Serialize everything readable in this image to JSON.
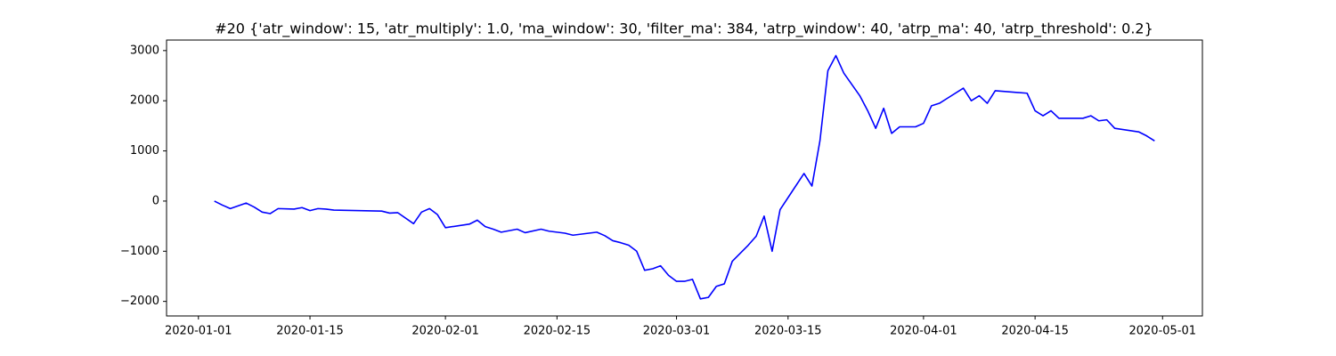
{
  "chart_data": {
    "type": "line",
    "title": "#20 {'atr_window': 15, 'atr_multiply': 1.0, 'ma_window': 30, 'filter_ma': 384, 'atrp_window': 40, 'atrp_ma': 40, 'atrp_threshold': 0.2}",
    "x": [
      "2020-01-03",
      "2020-01-04",
      "2020-01-05",
      "2020-01-07",
      "2020-01-08",
      "2020-01-09",
      "2020-01-10",
      "2020-01-11",
      "2020-01-13",
      "2020-01-14",
      "2020-01-15",
      "2020-01-16",
      "2020-01-17",
      "2020-01-18",
      "2020-01-24",
      "2020-01-25",
      "2020-01-26",
      "2020-01-28",
      "2020-01-29",
      "2020-01-30",
      "2020-01-31",
      "2020-02-01",
      "2020-02-04",
      "2020-02-05",
      "2020-02-06",
      "2020-02-07",
      "2020-02-08",
      "2020-02-10",
      "2020-02-11",
      "2020-02-13",
      "2020-02-14",
      "2020-02-16",
      "2020-02-17",
      "2020-02-20",
      "2020-02-21",
      "2020-02-22",
      "2020-02-23",
      "2020-02-24",
      "2020-02-25",
      "2020-02-26",
      "2020-02-27",
      "2020-02-28",
      "2020-02-29",
      "2020-03-01",
      "2020-03-02",
      "2020-03-03",
      "2020-03-04",
      "2020-03-05",
      "2020-03-06",
      "2020-03-07",
      "2020-03-08",
      "2020-03-10",
      "2020-03-11",
      "2020-03-12",
      "2020-03-13",
      "2020-03-14",
      "2020-03-17",
      "2020-03-18",
      "2020-03-19",
      "2020-03-20",
      "2020-03-21",
      "2020-03-22",
      "2020-03-24",
      "2020-03-25",
      "2020-03-26",
      "2020-03-27",
      "2020-03-28",
      "2020-03-29",
      "2020-03-31",
      "2020-04-01",
      "2020-04-02",
      "2020-04-03",
      "2020-04-04",
      "2020-04-06",
      "2020-04-07",
      "2020-04-08",
      "2020-04-09",
      "2020-04-10",
      "2020-04-14",
      "2020-04-15",
      "2020-04-16",
      "2020-04-17",
      "2020-04-18",
      "2020-04-21",
      "2020-04-22",
      "2020-04-23",
      "2020-04-24",
      "2020-04-25",
      "2020-04-28",
      "2020-04-29",
      "2020-04-30"
    ],
    "series": [
      {
        "color": "#0000ff",
        "values": [
          0,
          -80,
          -150,
          -40,
          -120,
          -220,
          -250,
          -150,
          -160,
          -130,
          -190,
          -150,
          -160,
          -180,
          -200,
          -240,
          -230,
          -450,
          -220,
          -150,
          -270,
          -530,
          -460,
          -380,
          -510,
          -560,
          -620,
          -560,
          -630,
          -560,
          -600,
          -640,
          -680,
          -620,
          -690,
          -790,
          -830,
          -880,
          -1000,
          -1380,
          -1350,
          -1290,
          -1480,
          -1600,
          -1600,
          -1560,
          -1950,
          -1920,
          -1700,
          -1650,
          -1200,
          -880,
          -700,
          -300,
          -1000,
          -170,
          550,
          300,
          1200,
          2600,
          2900,
          2550,
          2100,
          1800,
          1450,
          1850,
          1350,
          1480,
          1480,
          1550,
          1900,
          1950,
          2050,
          2250,
          2000,
          2100,
          1950,
          2200,
          2150,
          1800,
          1700,
          1800,
          1650,
          1650,
          1700,
          1600,
          1620,
          1450,
          1380,
          1300,
          1200
        ]
      }
    ],
    "xlim": [
      "2019-12-28",
      "2020-05-06"
    ],
    "xticks": [
      "2020-01-01",
      "2020-01-15",
      "2020-02-01",
      "2020-02-15",
      "2020-03-01",
      "2020-03-15",
      "2020-04-01",
      "2020-04-15",
      "2020-05-01"
    ],
    "ylim": [
      -2290,
      3210
    ],
    "yticks": [
      {
        "value": -2000,
        "label": "−2000"
      },
      {
        "value": -1000,
        "label": "−1000"
      },
      0,
      1000,
      2000,
      3000
    ]
  }
}
